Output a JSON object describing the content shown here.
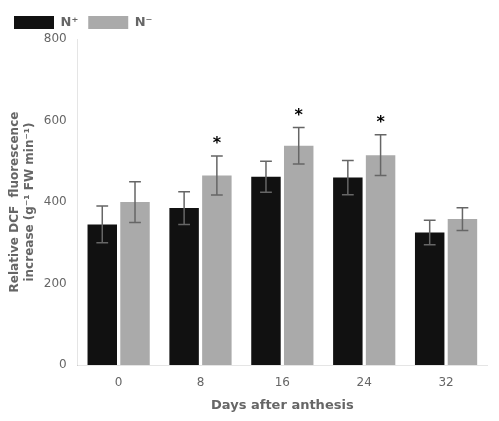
{
  "chart_data": {
    "type": "bar",
    "categories": [
      "0",
      "8",
      "16",
      "24",
      "32"
    ],
    "series": [
      {
        "name": "N⁺",
        "color": "#111111",
        "values": [
          345,
          385,
          462,
          460,
          325
        ],
        "errors": [
          45,
          40,
          38,
          42,
          30
        ]
      },
      {
        "name": "N⁻",
        "color": "#aaaaaa",
        "values": [
          400,
          465,
          538,
          515,
          358
        ],
        "errors": [
          50,
          48,
          45,
          50,
          28
        ]
      }
    ],
    "annotations": [
      {
        "text": "*",
        "category": "8",
        "series": "N⁻"
      },
      {
        "text": "*",
        "category": "16",
        "series": "N⁻"
      },
      {
        "text": "*",
        "category": "24",
        "series": "N⁻"
      }
    ],
    "x_label": "Days after anthesis",
    "y_label": "Relative DCF  fluorescence\nincrease (g⁻¹ FW min⁻¹)",
    "ylim": [
      0,
      800
    ],
    "yticks": [
      0,
      200,
      400,
      600,
      800
    ],
    "grid": false,
    "legend": "upper left"
  }
}
